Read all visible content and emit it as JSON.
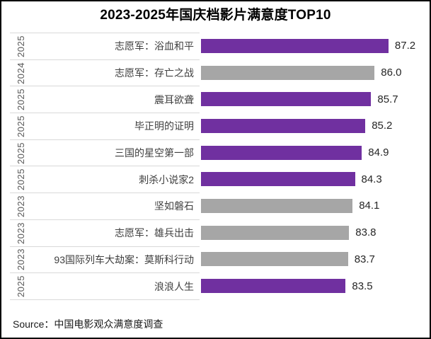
{
  "colors": {
    "highlight": "#7030A0",
    "normal": "#A6A6A6",
    "separator": "#D9D9D9",
    "year_text": "#595959",
    "name_text": "#3F3F3F",
    "value_text": "#262626"
  },
  "chart_data": {
    "type": "bar",
    "orientation": "horizontal",
    "title": "2023-2025年国庆档影片满意度TOP10",
    "source": "Source：中国电影观众满意度调查",
    "xlabel": "",
    "ylabel": "",
    "axis_min": 71,
    "axis_max": 88,
    "grid": false,
    "legend": false,
    "value_labels": true,
    "bar_color_rule": "2025 films highlighted purple, 2023/2024 films gray",
    "items": [
      {
        "year": "2025",
        "name": "志愿军：浴血和平",
        "value": 87.2,
        "color": "highlight"
      },
      {
        "year": "2024",
        "name": "志愿军：存亡之战",
        "value": 86.0,
        "color": "normal"
      },
      {
        "year": "2025",
        "name": "震耳欲聋",
        "value": 85.7,
        "color": "highlight"
      },
      {
        "year": "2025",
        "name": "毕正明的证明",
        "value": 85.2,
        "color": "highlight"
      },
      {
        "year": "2025",
        "name": "三国的星空第一部",
        "value": 84.9,
        "color": "highlight"
      },
      {
        "year": "2025",
        "name": "刺杀小说家2",
        "value": 84.3,
        "color": "highlight"
      },
      {
        "year": "2023",
        "name": "坚如磐石",
        "value": 84.1,
        "color": "normal"
      },
      {
        "year": "2023",
        "name": "志愿军：雄兵出击",
        "value": 83.8,
        "color": "normal"
      },
      {
        "year": "2023",
        "name": "93国际列车大劫案：莫斯科行动",
        "value": 83.7,
        "color": "normal"
      },
      {
        "year": "2025",
        "name": "浪浪人生",
        "value": 83.5,
        "color": "highlight"
      }
    ]
  }
}
